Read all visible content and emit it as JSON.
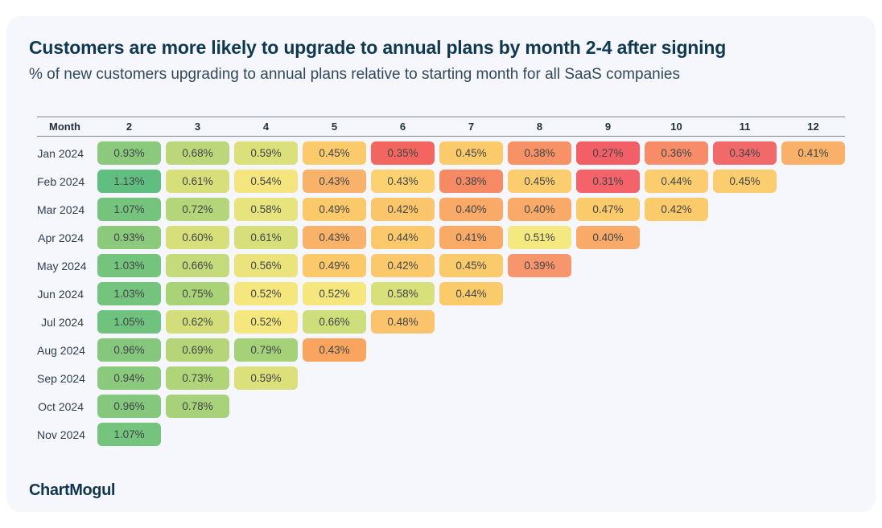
{
  "header": {
    "title": "Customers are more likely to upgrade to annual plans by month 2-4 after signing",
    "subtitle": "% of new customers upgrading to annual plans relative to starting month for all SaaS companies"
  },
  "table": {
    "month_header_label": "Month",
    "column_headers": [
      "2",
      "3",
      "4",
      "5",
      "6",
      "7",
      "8",
      "9",
      "10",
      "11",
      "12"
    ],
    "rows": [
      {
        "label": "Jan 2024",
        "cells": [
          {
            "value": "0.93%",
            "color": "#8bc97d"
          },
          {
            "value": "0.68%",
            "color": "#bcd77a"
          },
          {
            "value": "0.59%",
            "color": "#dce07b"
          },
          {
            "value": "0.45%",
            "color": "#fbca6b"
          },
          {
            "value": "0.35%",
            "color": "#f3655f"
          },
          {
            "value": "0.45%",
            "color": "#fbca6b"
          },
          {
            "value": "0.38%",
            "color": "#f79166"
          },
          {
            "value": "0.27%",
            "color": "#f25f66"
          },
          {
            "value": "0.36%",
            "color": "#f68d68"
          },
          {
            "value": "0.34%",
            "color": "#f2696a"
          },
          {
            "value": "0.41%",
            "color": "#f9b169"
          }
        ]
      },
      {
        "label": "Feb 2024",
        "cells": [
          {
            "value": "1.13%",
            "color": "#5fbe80"
          },
          {
            "value": "0.61%",
            "color": "#d7df7a"
          },
          {
            "value": "0.54%",
            "color": "#f4e57e"
          },
          {
            "value": "0.43%",
            "color": "#f9b269"
          },
          {
            "value": "0.43%",
            "color": "#fbd171"
          },
          {
            "value": "0.38%",
            "color": "#f58a64"
          },
          {
            "value": "0.45%",
            "color": "#fbcd6e"
          },
          {
            "value": "0.31%",
            "color": "#f4636a"
          },
          {
            "value": "0.44%",
            "color": "#fbcd6e"
          },
          {
            "value": "0.45%",
            "color": "#fbcd6e"
          }
        ]
      },
      {
        "label": "Mar 2024",
        "cells": [
          {
            "value": "1.07%",
            "color": "#74c47e"
          },
          {
            "value": "0.72%",
            "color": "#b4d579"
          },
          {
            "value": "0.58%",
            "color": "#e7e37d"
          },
          {
            "value": "0.49%",
            "color": "#fbc96a"
          },
          {
            "value": "0.42%",
            "color": "#fbc56c"
          },
          {
            "value": "0.40%",
            "color": "#f9a968"
          },
          {
            "value": "0.40%",
            "color": "#f9a968"
          },
          {
            "value": "0.47%",
            "color": "#fbca6b"
          },
          {
            "value": "0.42%",
            "color": "#fbca6b"
          }
        ]
      },
      {
        "label": "Apr 2024",
        "cells": [
          {
            "value": "0.93%",
            "color": "#8bc97d"
          },
          {
            "value": "0.60%",
            "color": "#d7df7a"
          },
          {
            "value": "0.61%",
            "color": "#d7df7a"
          },
          {
            "value": "0.43%",
            "color": "#f9b269"
          },
          {
            "value": "0.44%",
            "color": "#fbc96b"
          },
          {
            "value": "0.41%",
            "color": "#f9aa67"
          },
          {
            "value": "0.51%",
            "color": "#f3e980"
          },
          {
            "value": "0.40%",
            "color": "#f9a968"
          }
        ]
      },
      {
        "label": "May 2024",
        "cells": [
          {
            "value": "1.03%",
            "color": "#74c47e"
          },
          {
            "value": "0.66%",
            "color": "#c5da7a"
          },
          {
            "value": "0.56%",
            "color": "#ebe47d"
          },
          {
            "value": "0.49%",
            "color": "#fbc96a"
          },
          {
            "value": "0.42%",
            "color": "#fbc96b"
          },
          {
            "value": "0.45%",
            "color": "#fbca6b"
          },
          {
            "value": "0.39%",
            "color": "#f7966c"
          }
        ]
      },
      {
        "label": "Jun 2024",
        "cells": [
          {
            "value": "1.03%",
            "color": "#74c47e"
          },
          {
            "value": "0.75%",
            "color": "#aad378"
          },
          {
            "value": "0.52%",
            "color": "#f5e67e"
          },
          {
            "value": "0.52%",
            "color": "#f5e67e"
          },
          {
            "value": "0.58%",
            "color": "#d8e07b"
          },
          {
            "value": "0.44%",
            "color": "#fbca6b"
          }
        ]
      },
      {
        "label": "Jul 2024",
        "cells": [
          {
            "value": "1.05%",
            "color": "#70c37f"
          },
          {
            "value": "0.62%",
            "color": "#d3de7a"
          },
          {
            "value": "0.52%",
            "color": "#f5e67e"
          },
          {
            "value": "0.66%",
            "color": "#cede7b"
          },
          {
            "value": "0.48%",
            "color": "#fbc36c"
          }
        ]
      },
      {
        "label": "Aug 2024",
        "cells": [
          {
            "value": "0.96%",
            "color": "#85c77d"
          },
          {
            "value": "0.69%",
            "color": "#b6d579"
          },
          {
            "value": "0.79%",
            "color": "#a5d179"
          },
          {
            "value": "0.43%",
            "color": "#f9a55f"
          }
        ]
      },
      {
        "label": "Sep 2024",
        "cells": [
          {
            "value": "0.94%",
            "color": "#8bc97d"
          },
          {
            "value": "0.73%",
            "color": "#b0d478"
          },
          {
            "value": "0.59%",
            "color": "#dce07b"
          }
        ]
      },
      {
        "label": "Oct 2024",
        "cells": [
          {
            "value": "0.96%",
            "color": "#85c77d"
          },
          {
            "value": "0.78%",
            "color": "#a7d279"
          }
        ]
      },
      {
        "label": "Nov 2024",
        "cells": [
          {
            "value": "1.07%",
            "color": "#74c47e"
          }
        ]
      }
    ]
  },
  "footer": {
    "logo_text": "ChartMogul"
  },
  "colors": {
    "page_bg": "#ffffff",
    "card_bg": "#f6f7fc",
    "title_color": "#0f3950",
    "subtitle_color": "#33475b",
    "rule_color": "#7c8493",
    "header_text": "#1e2f3c",
    "row_label": "#2f3e4d",
    "cell_text": "#414547",
    "logo_color": "#12364f",
    "scale_low": "#f25f66",
    "scale_mid": "#f5e67e",
    "scale_high": "#5fbe80"
  },
  "chart_data": {
    "type": "heatmap",
    "title": "Customers are more likely to upgrade to annual plans by month 2-4 after signing",
    "subtitle": "% of new customers upgrading to annual plans relative to starting month for all SaaS companies",
    "x_axis_label": "Month",
    "columns": [
      2,
      3,
      4,
      5,
      6,
      7,
      8,
      9,
      10,
      11,
      12
    ],
    "row_labels": [
      "Jan 2024",
      "Feb 2024",
      "Mar 2024",
      "Apr 2024",
      "May 2024",
      "Jun 2024",
      "Jul 2024",
      "Aug 2024",
      "Sep 2024",
      "Oct 2024",
      "Nov 2024"
    ],
    "values_percent": [
      [
        0.93,
        0.68,
        0.59,
        0.45,
        0.35,
        0.45,
        0.38,
        0.27,
        0.36,
        0.34,
        0.41
      ],
      [
        1.13,
        0.61,
        0.54,
        0.43,
        0.43,
        0.38,
        0.45,
        0.31,
        0.44,
        0.45
      ],
      [
        1.07,
        0.72,
        0.58,
        0.49,
        0.42,
        0.4,
        0.4,
        0.47,
        0.42
      ],
      [
        0.93,
        0.6,
        0.61,
        0.43,
        0.44,
        0.41,
        0.51,
        0.4
      ],
      [
        1.03,
        0.66,
        0.56,
        0.49,
        0.42,
        0.45,
        0.39
      ],
      [
        1.03,
        0.75,
        0.52,
        0.52,
        0.58,
        0.44
      ],
      [
        1.05,
        0.62,
        0.52,
        0.66,
        0.48
      ],
      [
        0.96,
        0.69,
        0.79,
        0.43
      ],
      [
        0.94,
        0.73,
        0.59
      ],
      [
        0.96,
        0.78
      ],
      [
        1.07
      ]
    ],
    "legend": "none",
    "grid": false,
    "color_encoding": "red (low %) through yellow to green (high %)"
  }
}
